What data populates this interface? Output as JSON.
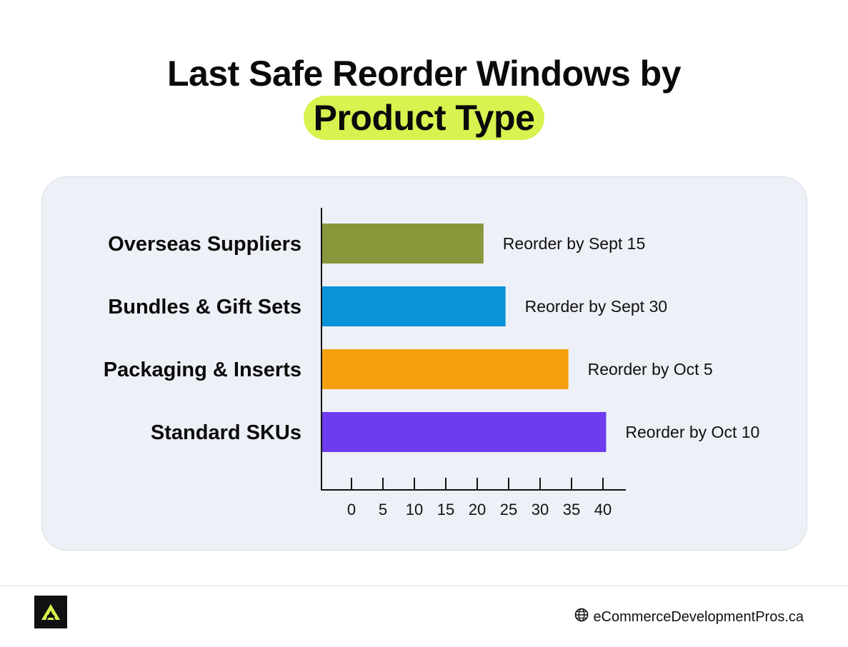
{
  "title": {
    "line1": "Last Safe Reorder Windows by",
    "line2": "Product Type"
  },
  "chart_data": {
    "type": "bar",
    "orientation": "horizontal",
    "categories": [
      "Overseas Suppliers",
      "Bundles & Gift Sets",
      "Packaging & Inserts",
      "Standard SKUs"
    ],
    "values": [
      21,
      24.5,
      34.5,
      40.5
    ],
    "data_labels": [
      "Reorder by Sept 15",
      "Reorder by Sept 30",
      "Reorder by Oct 5",
      "Reorder by Oct 10"
    ],
    "colors": [
      "#88973a",
      "#0a93d9",
      "#f4a00e",
      "#6c3cee"
    ],
    "x_ticks": [
      0,
      5,
      10,
      15,
      20,
      25,
      30,
      35,
      40
    ],
    "xlim": [
      -5,
      43
    ],
    "grid": false,
    "title": "Last Safe Reorder Windows by Product Type",
    "xlabel": "",
    "ylabel": ""
  },
  "footer": {
    "logo": "logo-icon",
    "globe": "globe-icon",
    "site": "eCommerceDevelopmentPros.ca"
  }
}
